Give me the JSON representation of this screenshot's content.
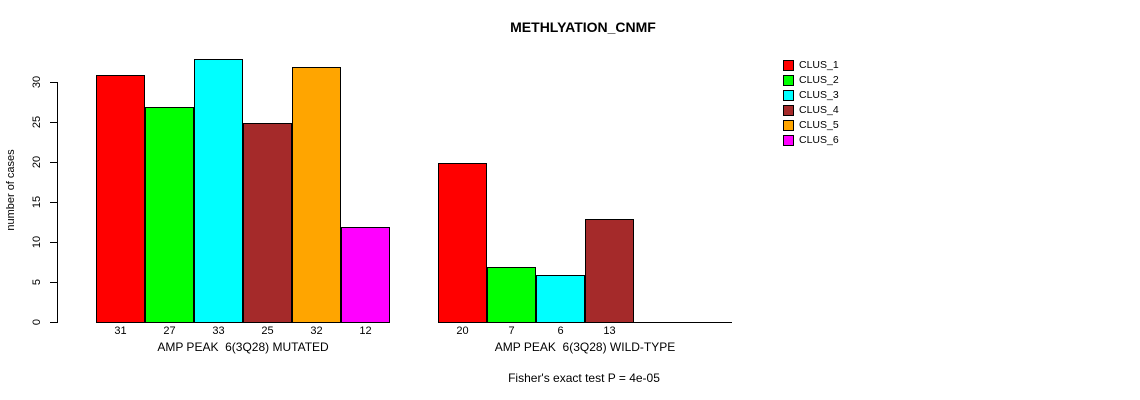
{
  "chart_data": {
    "type": "bar",
    "title": "METHLYATION_CNMF",
    "ylabel": "number of cases",
    "ylim": [
      0,
      33
    ],
    "yticks": [
      0,
      5,
      10,
      15,
      20,
      25,
      30
    ],
    "grid": false,
    "legend_position": "right",
    "clusters": [
      {
        "label": "CLUS_1",
        "color": "#FF0000"
      },
      {
        "label": "CLUS_2",
        "color": "#00FF00"
      },
      {
        "label": "CLUS_3",
        "color": "#00FFFF"
      },
      {
        "label": "CLUS_4",
        "color": "#A52A2A"
      },
      {
        "label": "CLUS_5",
        "color": "#FFA500"
      },
      {
        "label": "CLUS_6",
        "color": "#FF00FF"
      }
    ],
    "groups": [
      {
        "label": "AMP PEAK  6(3Q28) MUTATED",
        "values": [
          31,
          27,
          33,
          25,
          32,
          12
        ]
      },
      {
        "label": "AMP PEAK  6(3Q28) WILD-TYPE",
        "values": [
          20,
          7,
          6,
          13,
          0,
          0
        ]
      }
    ],
    "footnote": "Fisher's exact test P = 4e-05"
  }
}
